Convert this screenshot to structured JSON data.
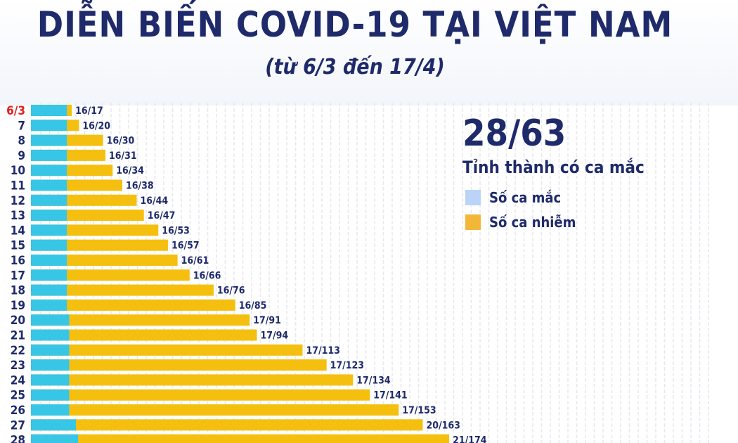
{
  "header": {
    "title": "DIỄN BIẾN COVID-19 TẠI VIỆT NAM",
    "subtitle": "(từ 6/3 đến 17/4)"
  },
  "stat": {
    "value": "28/63",
    "label": "Tỉnh thành có ca mắc"
  },
  "legend": [
    {
      "label": "Số ca mắc",
      "color": "#b9d4f7"
    },
    {
      "label": "Số ca nhiễm",
      "color": "#f2b739"
    }
  ],
  "colors": {
    "provinces_bar": "#38c6e6",
    "cases_bar": "#f5bf0f",
    "text": "#1f2a6b",
    "highlight_day": "#e02020"
  },
  "chart_data": {
    "type": "bar",
    "orientation": "horizontal",
    "highlight_category": "6/3",
    "categories": [
      "6/3",
      "7",
      "8",
      "9",
      "10",
      "11",
      "12",
      "13",
      "14",
      "15",
      "16",
      "17",
      "18",
      "19",
      "20",
      "21",
      "22",
      "23",
      "24",
      "25",
      "26",
      "27",
      "28"
    ],
    "series": [
      {
        "name": "Tỉnh thành có ca mắc",
        "values": [
          16,
          16,
          16,
          16,
          16,
          16,
          16,
          16,
          16,
          16,
          16,
          16,
          16,
          16,
          17,
          17,
          17,
          17,
          17,
          17,
          17,
          20,
          21
        ]
      },
      {
        "name": "Số ca nhiễm",
        "values": [
          17,
          20,
          30,
          31,
          34,
          38,
          44,
          47,
          53,
          57,
          61,
          66,
          76,
          85,
          91,
          94,
          113,
          123,
          134,
          141,
          153,
          163,
          174
        ]
      }
    ],
    "data_labels": [
      "16/17",
      "16/20",
      "16/30",
      "16/31",
      "16/34",
      "16/38",
      "16/44",
      "16/47",
      "16/53",
      "16/57",
      "16/61",
      "16/66",
      "16/76",
      "16/85",
      "17/91",
      "17/94",
      "17/113",
      "17/123",
      "17/134",
      "17/141",
      "17/153",
      "20/163",
      "21/174"
    ],
    "grid": "vertical dashed"
  }
}
